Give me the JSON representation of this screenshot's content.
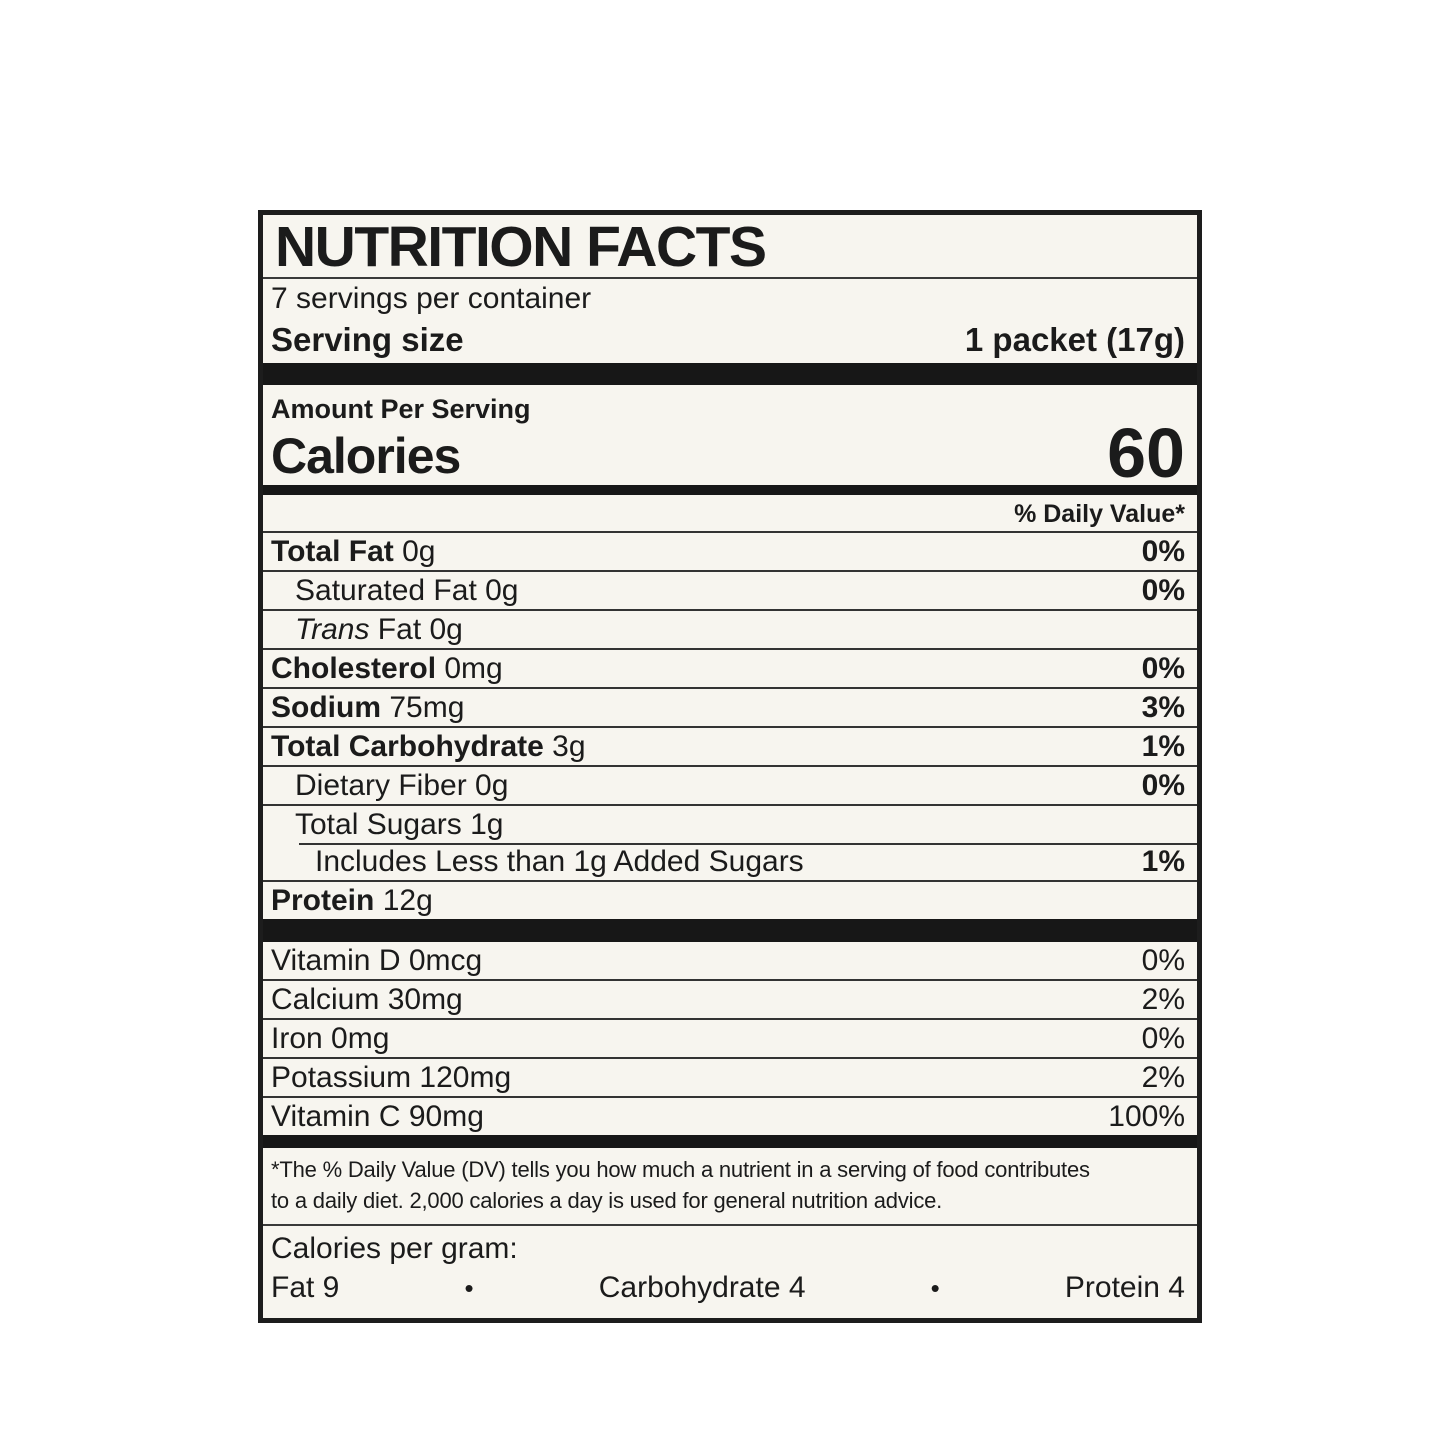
{
  "label": {
    "title": "NUTRITION FACTS",
    "servings_per_container": "7 servings per container",
    "serving_size_label": "Serving size",
    "serving_size_value": "1 packet (17g)",
    "amount_per_serving": "Amount Per Serving",
    "calories_label": "Calories",
    "calories_value": "60",
    "daily_value_header": "% Daily Value*",
    "nutrients": [
      {
        "name": "Total Fat",
        "amount": "0g",
        "dv": "0%",
        "bold": true,
        "indent": 0
      },
      {
        "name": "Saturated Fat",
        "amount": "0g",
        "dv": "0%",
        "bold": false,
        "indent": 1
      },
      {
        "name": "Trans Fat",
        "amount": "0g",
        "dv": "",
        "bold": false,
        "indent": 1,
        "italic_first_word": true
      },
      {
        "name": "Cholesterol",
        "amount": "0mg",
        "dv": "0%",
        "bold": true,
        "indent": 0
      },
      {
        "name": "Sodium",
        "amount": "75mg",
        "dv": "3%",
        "bold": true,
        "indent": 0
      },
      {
        "name": "Total Carbohydrate",
        "amount": "3g",
        "dv": "1%",
        "bold": true,
        "indent": 0
      },
      {
        "name": "Dietary Fiber",
        "amount": "0g",
        "dv": "0%",
        "bold": false,
        "indent": 1
      },
      {
        "name": "Total Sugars",
        "amount": "1g",
        "dv": "",
        "bold": false,
        "indent": 1
      },
      {
        "name": "Includes Less than 1g Added Sugars",
        "amount": "",
        "dv": "1%",
        "bold": false,
        "indent": 2,
        "inset_divider": true
      },
      {
        "name": "Protein",
        "amount": "12g",
        "dv": "",
        "bold": true,
        "indent": 0
      }
    ],
    "micronutrients": [
      {
        "name": "Vitamin D",
        "amount": "0mcg",
        "dv": "0%"
      },
      {
        "name": "Calcium",
        "amount": "30mg",
        "dv": "2%"
      },
      {
        "name": "Iron",
        "amount": "0mg",
        "dv": "0%"
      },
      {
        "name": "Potassium",
        "amount": "120mg",
        "dv": "2%"
      },
      {
        "name": "Vitamin C",
        "amount": "90mg",
        "dv": "100%"
      }
    ],
    "footnote_line1": "*The % Daily Value (DV) tells you how much a nutrient in a serving of food contributes",
    "footnote_line2": "to a daily diet. 2,000 calories a day is used for general nutrition advice.",
    "calories_per_gram_label": "Calories per gram:",
    "calories_per_gram_items": [
      "Fat 9",
      "Carbohydrate 4",
      "Protein 4"
    ],
    "bullet": "•",
    "colors": {
      "page_bg": "#ffffff",
      "label_bg": "#f7f5ef",
      "ink": "#1b1b1b"
    }
  }
}
